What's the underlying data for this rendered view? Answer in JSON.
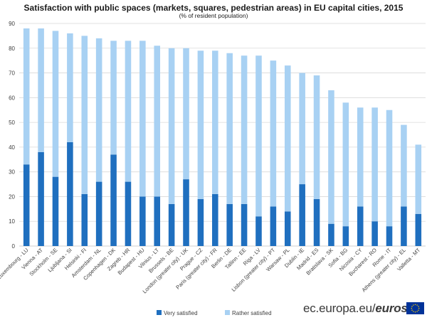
{
  "header": {
    "title": "Satisfaction with public spaces (markets, squares, pedestrian areas) in EU capital cities, 2015",
    "subtitle": "(% of resident population)"
  },
  "legend": {
    "very": "Very satisfied",
    "rather": "Rather satisfied"
  },
  "footer": {
    "domain": "ec.europa.eu/",
    "brand": "eurostat",
    "flag_icon": "eu-flag-icon"
  },
  "colors": {
    "very": "#1f6fbf",
    "rather": "#a8d1f3",
    "grid": "#d9d9d9",
    "flag": "#003399",
    "stars": "#ffcc00"
  },
  "chart_data": {
    "type": "bar",
    "stacked": true,
    "title": "Satisfaction with public spaces (markets, squares, pedestrian areas) in EU capital cities, 2015",
    "subtitle": "(% of resident population)",
    "xlabel": "",
    "ylabel": "",
    "ylim": [
      0,
      90
    ],
    "yticks": [
      0,
      10,
      20,
      30,
      40,
      50,
      60,
      70,
      80,
      90
    ],
    "grid": true,
    "legend_position": "bottom",
    "categories": [
      "Luxembourg - LU",
      "Vienna - AT",
      "Stockholm - SE",
      "Ljubljana - SI",
      "Helsinki - FI",
      "Amsterdam - NL",
      "Copenhagen - DK",
      "Zagreb - HR",
      "Budapest - HU",
      "Vilnius - LT",
      "Brussels - BE",
      "London (greater city) - UK",
      "Prague - CZ",
      "Paris (greater city) - FR",
      "Berlin - DE",
      "Tallinn - EE",
      "Riga - LV",
      "Lisbon (greater city) - PT",
      "Warsaw - PL",
      "Dublin - IE",
      "Madrid - ES",
      "Bratislava - SK",
      "Sofia - BG",
      "Nicosia - CY",
      "Bucharest - RO",
      "Rome - IT",
      "Athens (greater city) - EL",
      "Valletta - MT"
    ],
    "series": [
      {
        "name": "Very satisfied",
        "values": [
          33,
          38,
          28,
          42,
          21,
          26,
          37,
          26,
          20,
          20,
          17,
          27,
          19,
          21,
          17,
          17,
          12,
          16,
          14,
          25,
          19,
          9,
          8,
          16,
          10,
          8,
          16,
          13
        ]
      },
      {
        "name": "Rather satisfied",
        "values": [
          55,
          50,
          59,
          44,
          64,
          58,
          46,
          57,
          63,
          61,
          63,
          53,
          60,
          58,
          61,
          60,
          65,
          59,
          59,
          45,
          50,
          54,
          50,
          40,
          46,
          47,
          33,
          28
        ]
      }
    ]
  }
}
